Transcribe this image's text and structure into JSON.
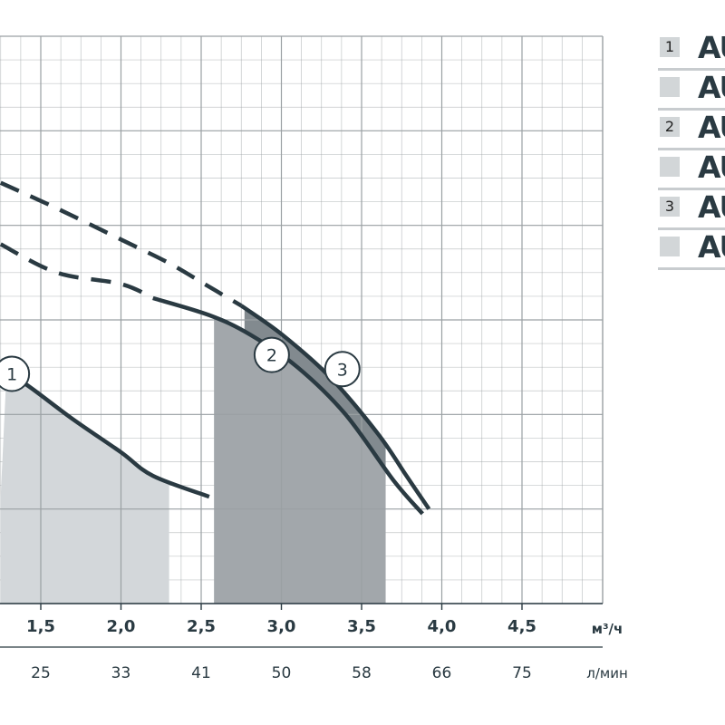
{
  "chart_data": {
    "type": "line",
    "x_axis": {
      "unit": "м³/ч",
      "min": 1.25,
      "max": 4.95,
      "ticks": [
        1.5,
        2.0,
        2.5,
        3.0,
        3.5,
        4.0,
        4.5
      ],
      "tick_labels": [
        "1,5",
        "2,0",
        "2,5",
        "3,0",
        "3,5",
        "4,0",
        "4,5"
      ]
    },
    "x2_axis": {
      "unit": "л/мин",
      "tick_positions_m3h": [
        1.5,
        2.0,
        2.5,
        3.0,
        3.5,
        4.0,
        4.5
      ],
      "tick_labels": [
        "25",
        "33",
        "41",
        "50",
        "58",
        "66",
        "75"
      ]
    },
    "y_axis": {
      "min": 0,
      "max": 6.0,
      "grid_major_step": 1.0,
      "grid_minor_step": 0.25
    },
    "grid": true,
    "series": [
      {
        "name": "1",
        "solid": [
          [
            1.27,
            2.4
          ],
          [
            1.38,
            2.35
          ],
          [
            1.7,
            1.95
          ],
          [
            2.0,
            1.6
          ],
          [
            2.2,
            1.35
          ],
          [
            2.55,
            1.13
          ]
        ],
        "dashed": [],
        "label_at": [
          1.32,
          2.43
        ]
      },
      {
        "name": "2",
        "dashed": [
          [
            1.25,
            3.8
          ],
          [
            1.6,
            3.5
          ],
          [
            2.0,
            3.38
          ],
          [
            2.2,
            3.23
          ]
        ],
        "solid": [
          [
            2.2,
            3.23
          ],
          [
            2.55,
            3.05
          ],
          [
            2.8,
            2.85
          ],
          [
            3.1,
            2.5
          ],
          [
            3.4,
            2.0
          ],
          [
            3.7,
            1.3
          ],
          [
            3.88,
            0.95
          ]
        ],
        "label_at": [
          2.94,
          2.63
        ]
      },
      {
        "name": "3",
        "dashed": [
          [
            1.25,
            4.45
          ],
          [
            1.6,
            4.18
          ],
          [
            2.0,
            3.85
          ],
          [
            2.3,
            3.6
          ],
          [
            2.55,
            3.35
          ],
          [
            2.75,
            3.15
          ]
        ],
        "solid": [
          [
            2.75,
            3.15
          ],
          [
            3.0,
            2.85
          ],
          [
            3.3,
            2.4
          ],
          [
            3.6,
            1.8
          ],
          [
            3.78,
            1.35
          ],
          [
            3.92,
            1.0
          ]
        ],
        "label_at": [
          3.38,
          2.48
        ]
      }
    ],
    "shaded_regions": [
      {
        "x_from": 1.25,
        "x_to": 2.3,
        "shade": "light",
        "upper_curve": "1"
      },
      {
        "x_from": 2.58,
        "x_to": 3.65,
        "shade": "medium",
        "upper_curve": "2"
      },
      {
        "x_from": 2.77,
        "x_to": 3.65,
        "shade": "dark",
        "between_curves": [
          "2",
          "3"
        ]
      }
    ],
    "colors": {
      "curve": "#2a3a42",
      "grid": "#9aa0a3",
      "shade_light": "#d3d7da",
      "shade_medium": "#a2a7ab",
      "shade_dark": "#828a8f",
      "circle_border": "#2a3a42"
    }
  },
  "legend": {
    "items": [
      {
        "badge": "1",
        "text": "AU"
      },
      {
        "badge": "",
        "text": "AU"
      },
      {
        "badge": "2",
        "text": "AU"
      },
      {
        "badge": "",
        "text": "AU"
      },
      {
        "badge": "3",
        "text": "AU"
      },
      {
        "badge": "",
        "text": "AU"
      }
    ]
  }
}
